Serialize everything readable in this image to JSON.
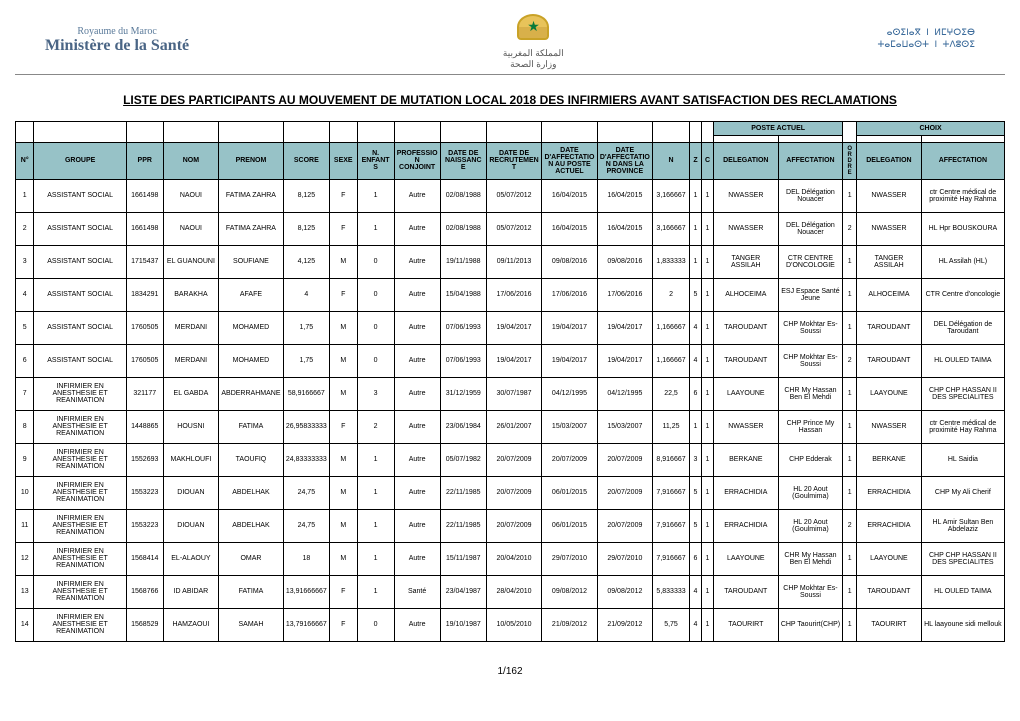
{
  "header": {
    "left_top": "Royaume du Maroc",
    "left_main": "Ministère de la Santé",
    "arabic_country": "المملكة المغربية",
    "arabic_ministry": "وزارة الصحة",
    "right_line1": "ⴰⵙⵉⵏⴰⴳ ⵏ ⵍⵎⵖⵔⵉⴱ",
    "right_line2": "ⵜⴰⵎⴰⵡⴰⵙⵜ ⵏ ⵜⴷⵓⵙⵉ"
  },
  "title": "LISTE DES PARTICIPANTS AU MOUVEMENT DE MUTATION LOCAL 2018 DES INFIRMIERS AVANT SATISFACTION DES RECLAMATIONS",
  "footer": "1/162",
  "columns": {
    "num": "N°",
    "groupe": "GROUPE",
    "ppr": "PPR",
    "nom": "NOM",
    "prenom": "PRENOM",
    "score": "SCORE",
    "sexe": "SEXE",
    "enfants": "N. ENFANTS",
    "profession": "PROFESSION CONJOINT",
    "naissance": "DATE DE NAISSANCE",
    "recrutement": "DATE DE RECRUTEMENT",
    "aff_poste": "DATE D'AFFECTATION AU POSTE ACTUEL",
    "aff_prov": "DATE D'AFFECTATION DANS LA PROVINCE",
    "n": "N",
    "z": "Z",
    "c": "C",
    "poste_group": "POSTE ACTUEL",
    "delegation": "DELEGATION",
    "affectation": "AFFECTATION",
    "ordre": "O R D R E",
    "choix_group": "CHOIX",
    "choix_delegation": "DELEGATION",
    "choix_affectation": "AFFECTATION"
  },
  "col_widths": [
    "2%",
    "10%",
    "4%",
    "6%",
    "7%",
    "5%",
    "3%",
    "4%",
    "5%",
    "5%",
    "6%",
    "6%",
    "6%",
    "4%",
    "1.3%",
    "1.3%",
    "7%",
    "7%",
    "1.5%",
    "7%",
    "9%"
  ],
  "header_bg": "#97c2c7",
  "rows": [
    {
      "n": "1",
      "groupe": "ASSISTANT SOCIAL",
      "ppr": "1661498",
      "nom": "NAOUI",
      "prenom": "FATIMA ZAHRA",
      "score": "8,125",
      "sexe": "F",
      "enf": "1",
      "prof": "Autre",
      "nais": "02/08/1988",
      "recr": "05/07/2012",
      "ap": "16/04/2015",
      "apv": "16/04/2015",
      "nn": "3,166667",
      "z": "1",
      "c": "1",
      "del": "NWASSER",
      "aff": "DEL Délégation Nouacer",
      "ord": "1",
      "cdel": "NWASSER",
      "caff": "ctr Centre médical de proximité Hay Rahma"
    },
    {
      "n": "2",
      "groupe": "ASSISTANT SOCIAL",
      "ppr": "1661498",
      "nom": "NAOUI",
      "prenom": "FATIMA ZAHRA",
      "score": "8,125",
      "sexe": "F",
      "enf": "1",
      "prof": "Autre",
      "nais": "02/08/1988",
      "recr": "05/07/2012",
      "ap": "16/04/2015",
      "apv": "16/04/2015",
      "nn": "3,166667",
      "z": "1",
      "c": "1",
      "del": "NWASSER",
      "aff": "DEL Délégation Nouacer",
      "ord": "2",
      "cdel": "NWASSER",
      "caff": "HL Hpr BOUSKOURA"
    },
    {
      "n": "3",
      "groupe": "ASSISTANT SOCIAL",
      "ppr": "1715437",
      "nom": "EL GUANOUNI",
      "prenom": "SOUFIANE",
      "score": "4,125",
      "sexe": "M",
      "enf": "0",
      "prof": "Autre",
      "nais": "19/11/1988",
      "recr": "09/11/2013",
      "ap": "09/08/2016",
      "apv": "09/08/2016",
      "nn": "1,833333",
      "z": "1",
      "c": "1",
      "del": "TANGER ASSILAH",
      "aff": "CTR CENTRE D'ONCOLOGIE",
      "ord": "1",
      "cdel": "TANGER ASSILAH",
      "caff": "HL Assilah (HL)"
    },
    {
      "n": "4",
      "groupe": "ASSISTANT SOCIAL",
      "ppr": "1834291",
      "nom": "BARAKHA",
      "prenom": "AFAFE",
      "score": "4",
      "sexe": "F",
      "enf": "0",
      "prof": "Autre",
      "nais": "15/04/1988",
      "recr": "17/06/2016",
      "ap": "17/06/2016",
      "apv": "17/06/2016",
      "nn": "2",
      "z": "5",
      "c": "1",
      "del": "ALHOCEIMA",
      "aff": "ESJ Espace Santé Jeune",
      "ord": "1",
      "cdel": "ALHOCEIMA",
      "caff": "CTR Centre d'oncologie"
    },
    {
      "n": "5",
      "groupe": "ASSISTANT SOCIAL",
      "ppr": "1760505",
      "nom": "MERDANI",
      "prenom": "MOHAMED",
      "score": "1,75",
      "sexe": "M",
      "enf": "0",
      "prof": "Autre",
      "nais": "07/06/1993",
      "recr": "19/04/2017",
      "ap": "19/04/2017",
      "apv": "19/04/2017",
      "nn": "1,166667",
      "z": "4",
      "c": "1",
      "del": "TAROUDANT",
      "aff": "CHP Mokhtar Es-Soussi",
      "ord": "1",
      "cdel": "TAROUDANT",
      "caff": "DEL Délégation de Taroudant"
    },
    {
      "n": "6",
      "groupe": "ASSISTANT SOCIAL",
      "ppr": "1760505",
      "nom": "MERDANI",
      "prenom": "MOHAMED",
      "score": "1,75",
      "sexe": "M",
      "enf": "0",
      "prof": "Autre",
      "nais": "07/06/1993",
      "recr": "19/04/2017",
      "ap": "19/04/2017",
      "apv": "19/04/2017",
      "nn": "1,166667",
      "z": "4",
      "c": "1",
      "del": "TAROUDANT",
      "aff": "CHP Mokhtar Es-Soussi",
      "ord": "2",
      "cdel": "TAROUDANT",
      "caff": "HL OULED TAIMA"
    },
    {
      "n": "7",
      "groupe": "INFIRMIER EN ANESTHESIE ET REANIMATION",
      "ppr": "321177",
      "nom": "EL GABDA",
      "prenom": "ABDERRAHMANE",
      "score": "58,9166667",
      "sexe": "M",
      "enf": "3",
      "prof": "Autre",
      "nais": "31/12/1959",
      "recr": "30/07/1987",
      "ap": "04/12/1995",
      "apv": "04/12/1995",
      "nn": "22,5",
      "z": "6",
      "c": "1",
      "del": "LAAYOUNE",
      "aff": "CHR My Hassan Ben El Mehdi",
      "ord": "1",
      "cdel": "LAAYOUNE",
      "caff": "CHP CHP HASSAN II DES SPECIALITES"
    },
    {
      "n": "8",
      "groupe": "INFIRMIER EN ANESTHESIE ET REANIMATION",
      "ppr": "1448865",
      "nom": "HOUSNI",
      "prenom": "FATIMA",
      "score": "26,95833333",
      "sexe": "F",
      "enf": "2",
      "prof": "Autre",
      "nais": "23/06/1984",
      "recr": "26/01/2007",
      "ap": "15/03/2007",
      "apv": "15/03/2007",
      "nn": "11,25",
      "z": "1",
      "c": "1",
      "del": "NWASSER",
      "aff": "CHP Prince My Hassan",
      "ord": "1",
      "cdel": "NWASSER",
      "caff": "ctr Centre médical de proximité Hay Rahma"
    },
    {
      "n": "9",
      "groupe": "INFIRMIER EN ANESTHESIE ET REANIMATION",
      "ppr": "1552693",
      "nom": "MAKHLOUFI",
      "prenom": "TAOUFIQ",
      "score": "24,83333333",
      "sexe": "M",
      "enf": "1",
      "prof": "Autre",
      "nais": "05/07/1982",
      "recr": "20/07/2009",
      "ap": "20/07/2009",
      "apv": "20/07/2009",
      "nn": "8,916667",
      "z": "3",
      "c": "1",
      "del": "BERKANE",
      "aff": "CHP Edderak",
      "ord": "1",
      "cdel": "BERKANE",
      "caff": "HL Saidia"
    },
    {
      "n": "10",
      "groupe": "INFIRMIER EN ANESTHESIE ET REANIMATION",
      "ppr": "1553223",
      "nom": "DIOUAN",
      "prenom": "ABDELHAK",
      "score": "24,75",
      "sexe": "M",
      "enf": "1",
      "prof": "Autre",
      "nais": "22/11/1985",
      "recr": "20/07/2009",
      "ap": "06/01/2015",
      "apv": "20/07/2009",
      "nn": "7,916667",
      "z": "5",
      "c": "1",
      "del": "ERRACHIDIA",
      "aff": "HL 20 Aout (Goulmima)",
      "ord": "1",
      "cdel": "ERRACHIDIA",
      "caff": "CHP My Ali Cherif"
    },
    {
      "n": "11",
      "groupe": "INFIRMIER EN ANESTHESIE ET REANIMATION",
      "ppr": "1553223",
      "nom": "DIOUAN",
      "prenom": "ABDELHAK",
      "score": "24,75",
      "sexe": "M",
      "enf": "1",
      "prof": "Autre",
      "nais": "22/11/1985",
      "recr": "20/07/2009",
      "ap": "06/01/2015",
      "apv": "20/07/2009",
      "nn": "7,916667",
      "z": "5",
      "c": "1",
      "del": "ERRACHIDIA",
      "aff": "HL 20 Aout (Goulmima)",
      "ord": "2",
      "cdel": "ERRACHIDIA",
      "caff": "HL Amir Sultan Ben Abdelaziz"
    },
    {
      "n": "12",
      "groupe": "INFIRMIER EN ANESTHESIE ET REANIMATION",
      "ppr": "1568414",
      "nom": "EL-ALAOUY",
      "prenom": "OMAR",
      "score": "18",
      "sexe": "M",
      "enf": "1",
      "prof": "Autre",
      "nais": "15/11/1987",
      "recr": "20/04/2010",
      "ap": "29/07/2010",
      "apv": "29/07/2010",
      "nn": "7,916667",
      "z": "6",
      "c": "1",
      "del": "LAAYOUNE",
      "aff": "CHR My Hassan Ben El Mehdi",
      "ord": "1",
      "cdel": "LAAYOUNE",
      "caff": "CHP CHP HASSAN II DES SPECIALITES"
    },
    {
      "n": "13",
      "groupe": "INFIRMIER EN ANESTHESIE ET REANIMATION",
      "ppr": "1568766",
      "nom": "ID ABIDAR",
      "prenom": "FATIMA",
      "score": "13,91666667",
      "sexe": "F",
      "enf": "1",
      "prof": "Santé",
      "nais": "23/04/1987",
      "recr": "28/04/2010",
      "ap": "09/08/2012",
      "apv": "09/08/2012",
      "nn": "5,833333",
      "z": "4",
      "c": "1",
      "del": "TAROUDANT",
      "aff": "CHP Mokhtar Es-Soussi",
      "ord": "1",
      "cdel": "TAROUDANT",
      "caff": "HL OULED TAIMA"
    },
    {
      "n": "14",
      "groupe": "INFIRMIER EN ANESTHESIE ET REANIMATION",
      "ppr": "1568529",
      "nom": "HAMZAOUI",
      "prenom": "SAMAH",
      "score": "13,79166667",
      "sexe": "F",
      "enf": "0",
      "prof": "Autre",
      "nais": "19/10/1987",
      "recr": "10/05/2010",
      "ap": "21/09/2012",
      "apv": "21/09/2012",
      "nn": "5,75",
      "z": "4",
      "c": "1",
      "del": "TAOURIRT",
      "aff": "CHP Taourirt(CHP)",
      "ord": "1",
      "cdel": "TAOURIRT",
      "caff": "HL laayoune sidi mellouk"
    }
  ]
}
